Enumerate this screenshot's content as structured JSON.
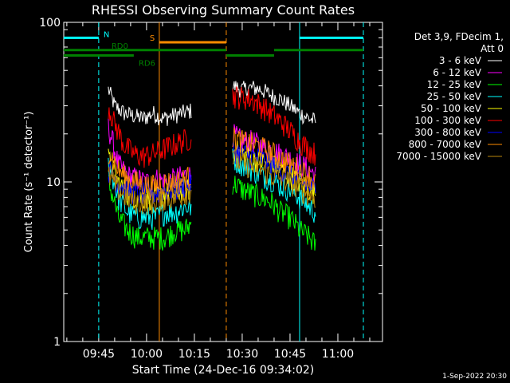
{
  "chart_data": {
    "type": "line",
    "title": "RHESSI Observing Summary Count Rates",
    "xlabel": "Start Time (24-Dec-16 09:34:02)",
    "ylabel": "Count Rate (s⁻¹ detector⁻¹)",
    "yscale": "log",
    "ylim": [
      1,
      100
    ],
    "xlim": [
      "09:34:02",
      "11:14:00"
    ],
    "x_ticks": [
      "09:45",
      "10:00",
      "10:15",
      "10:30",
      "10:45",
      "11:00"
    ],
    "y_ticks": [
      "1",
      "10",
      "100"
    ],
    "footer": "1-Sep-2022 20:30",
    "legend": {
      "header": [
        "Det 3,9, FDecim 1,",
        "Att 0"
      ],
      "position": "right"
    },
    "series": [
      {
        "name": "3 - 6 keV",
        "color": "#ffffff",
        "segments": [
          {
            "x": [
              "09:48",
              "09:50",
              "09:53",
              "09:56",
              "09:59",
              "10:02",
              "10:05",
              "10:08",
              "10:11",
              "10:14"
            ],
            "y": [
              38,
              30,
              27,
              26,
              25,
              27,
              25,
              26,
              27,
              28
            ]
          },
          {
            "x": [
              "10:27",
              "10:30",
              "10:33",
              "10:36",
              "10:39",
              "10:42",
              "10:45",
              "10:48",
              "10:51",
              "10:53"
            ],
            "y": [
              40,
              38,
              39,
              38,
              35,
              33,
              30,
              27,
              25,
              24
            ]
          }
        ]
      },
      {
        "name": "6 - 12 keV",
        "color": "#ff00ff",
        "segments": [
          {
            "x": [
              "09:48",
              "09:51",
              "09:54",
              "09:57",
              "10:00",
              "10:03",
              "10:06",
              "10:09",
              "10:12",
              "10:14"
            ],
            "y": [
              22,
              13,
              11,
              10.5,
              10,
              10.5,
              10,
              10.5,
              11,
              11
            ]
          },
          {
            "x": [
              "10:27",
              "10:30",
              "10:33",
              "10:36",
              "10:39",
              "10:42",
              "10:45",
              "10:48",
              "10:51",
              "10:53"
            ],
            "y": [
              20,
              18,
              18,
              17,
              16,
              15,
              14,
              13,
              12,
              11
            ]
          }
        ]
      },
      {
        "name": "12 - 25 keV",
        "color": "#00ff00",
        "segments": [
          {
            "x": [
              "09:48",
              "09:51",
              "09:54",
              "09:57",
              "10:00",
              "10:03",
              "10:06",
              "10:09",
              "10:12",
              "10:14"
            ],
            "y": [
              10,
              6,
              5,
              4.5,
              4.5,
              4.5,
              4.5,
              5,
              5,
              5.5
            ]
          },
          {
            "x": [
              "10:27",
              "10:30",
              "10:33",
              "10:36",
              "10:39",
              "10:42",
              "10:45",
              "10:48",
              "10:51",
              "10:53"
            ],
            "y": [
              10,
              9,
              8.5,
              8,
              7.5,
              6.5,
              6,
              5,
              4.5,
              4
            ]
          }
        ]
      },
      {
        "name": "25 - 50 keV",
        "color": "#00ffff",
        "segments": [
          {
            "x": [
              "09:48",
              "09:51",
              "09:54",
              "09:57",
              "10:00",
              "10:03",
              "10:06",
              "10:09",
              "10:12",
              "10:14"
            ],
            "y": [
              13,
              8,
              6.5,
              6,
              6,
              6,
              6.5,
              6.5,
              7,
              7
            ]
          },
          {
            "x": [
              "10:27",
              "10:30",
              "10:33",
              "10:36",
              "10:39",
              "10:42",
              "10:45",
              "10:48",
              "10:51",
              "10:53"
            ],
            "y": [
              14,
              13,
              12,
              11,
              10.5,
              9.5,
              9,
              8,
              7,
              6.5
            ]
          }
        ]
      },
      {
        "name": "50 - 100 keV",
        "color": "#ffff00",
        "segments": [
          {
            "x": [
              "09:48",
              "09:51",
              "09:54",
              "09:57",
              "10:00",
              "10:03",
              "10:06",
              "10:09",
              "10:12",
              "10:14"
            ],
            "y": [
              14,
              10,
              8.5,
              8,
              8,
              8,
              8.5,
              8.5,
              9,
              9
            ]
          },
          {
            "x": [
              "10:27",
              "10:30",
              "10:33",
              "10:36",
              "10:39",
              "10:42",
              "10:45",
              "10:48",
              "10:51",
              "10:53"
            ],
            "y": [
              16,
              15,
              14,
              13.5,
              13,
              12,
              11,
              10,
              9,
              8.5
            ]
          }
        ]
      },
      {
        "name": "100 - 300 keV",
        "color": "#ff0000",
        "segments": [
          {
            "x": [
              "09:48",
              "09:50",
              "09:53",
              "09:56",
              "09:59",
              "10:02",
              "10:05",
              "10:08",
              "10:11",
              "10:14"
            ],
            "y": [
              30,
              23,
              17,
              15,
              14.5,
              15,
              16,
              17,
              18,
              19
            ]
          },
          {
            "x": [
              "10:27",
              "10:30",
              "10:33",
              "10:36",
              "10:39",
              "10:42",
              "10:45",
              "10:48",
              "10:51",
              "10:53"
            ],
            "y": [
              35,
              34,
              33,
              30,
              27,
              24,
              21,
              18,
              16,
              15
            ]
          }
        ]
      },
      {
        "name": "300 - 800 keV",
        "color": "#0000ff",
        "segments": [
          {
            "x": [
              "09:48",
              "09:51",
              "09:54",
              "09:57",
              "10:00",
              "10:03",
              "10:06",
              "10:09",
              "10:12",
              "10:14"
            ],
            "y": [
              12,
              10,
              9,
              8.5,
              8.5,
              8.5,
              9,
              9,
              9.5,
              10
            ]
          },
          {
            "x": [
              "10:27",
              "10:30",
              "10:33",
              "10:36",
              "10:39",
              "10:42",
              "10:45",
              "10:48",
              "10:51",
              "10:53"
            ],
            "y": [
              16,
              15,
              14.5,
              14,
              13,
              12,
              11,
              10,
              9.5,
              9
            ]
          }
        ]
      },
      {
        "name": "800 - 7000 keV",
        "color": "#ff8c00",
        "segments": [
          {
            "x": [
              "09:48",
              "09:51",
              "09:54",
              "09:57",
              "10:00",
              "10:03",
              "10:06",
              "10:09",
              "10:12",
              "10:14"
            ],
            "y": [
              16,
              12,
              10.5,
              10,
              9.5,
              9.5,
              10,
              10,
              10.5,
              11
            ]
          },
          {
            "x": [
              "10:27",
              "10:30",
              "10:33",
              "10:36",
              "10:39",
              "10:42",
              "10:45",
              "10:48",
              "10:51",
              "10:53"
            ],
            "y": [
              19,
              18,
              17.5,
              16.5,
              15.5,
              14,
              13,
              12,
              11,
              10
            ]
          }
        ]
      },
      {
        "name": "7000 - 15000 keV",
        "color": "#b8860b",
        "segments": [
          {
            "x": [
              "09:48",
              "09:51",
              "09:54",
              "09:57",
              "10:00",
              "10:03",
              "10:06",
              "10:09",
              "10:12",
              "10:14"
            ],
            "y": [
              11,
              9,
              8,
              7.5,
              7.5,
              7.5,
              8,
              8,
              8.5,
              9
            ]
          },
          {
            "x": [
              "10:27",
              "10:30",
              "10:33",
              "10:36",
              "10:39",
              "10:42",
              "10:45",
              "10:48",
              "10:51",
              "10:53"
            ],
            "y": [
              14,
              13,
              12.5,
              12,
              11,
              10.5,
              10,
              9,
              8.5,
              8
            ]
          }
        ]
      }
    ],
    "vertical_lines": [
      {
        "x": "09:45",
        "color": "#00ffff",
        "style": "dashed"
      },
      {
        "x": "10:04",
        "color": "#ff8c00",
        "style": "solid"
      },
      {
        "x": "10:25",
        "color": "#ff8c00",
        "style": "dashed"
      },
      {
        "x": "10:48",
        "color": "#00ffff",
        "style": "solid"
      },
      {
        "x": "11:08",
        "color": "#00ffff",
        "style": "dashed"
      }
    ],
    "status_bars": [
      {
        "label": "N",
        "color": "#00ffff",
        "segments": [
          [
            "09:34",
            "09:45"
          ],
          [
            "10:48",
            "11:08"
          ]
        ],
        "y": 80
      },
      {
        "label": "S",
        "color": "#ff8c00",
        "segments": [
          [
            "10:04",
            "10:25"
          ]
        ],
        "y": 75
      },
      {
        "label": "RD0",
        "color": "#008000",
        "segments": [
          [
            "09:34",
            "10:25"
          ],
          [
            "10:40",
            "11:08"
          ]
        ],
        "y": 67
      },
      {
        "label": "RD6",
        "color": "#008000",
        "segments": [
          [
            "09:34",
            "09:56"
          ],
          [
            "10:25",
            "10:40"
          ]
        ],
        "y": 62
      }
    ]
  }
}
